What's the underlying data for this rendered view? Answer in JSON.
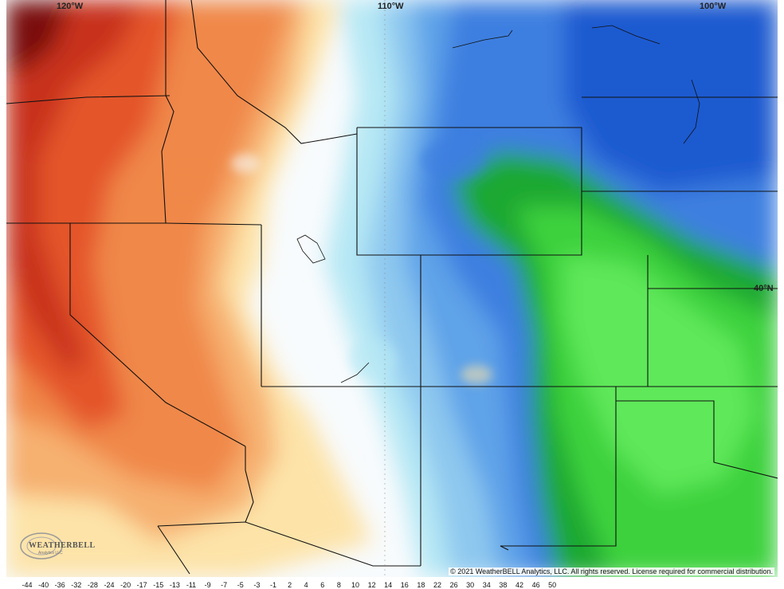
{
  "map": {
    "longitude_labels": [
      "120°W",
      "110°W",
      "100°W"
    ],
    "latitude_labels": [
      "40°N"
    ],
    "copyright": "© 2021 WeatherBELL Analytics, LLC. All rights reserved. License required for commercial distribution.",
    "logo": {
      "name": "WEATHERBELL",
      "subtitle": "Analytics LLC"
    }
  },
  "colorbar": {
    "ticks": [
      "-44",
      "-40",
      "-36",
      "-32",
      "-28",
      "-24",
      "-20",
      "-17",
      "-15",
      "-13",
      "-11",
      "-9",
      "-7",
      "-5",
      "-3",
      "-1",
      "2",
      "4",
      "6",
      "8",
      "10",
      "12",
      "14",
      "16",
      "18",
      "22",
      "26",
      "30",
      "34",
      "38",
      "42",
      "46",
      "50"
    ]
  },
  "colors": {
    "dark_red": "#7a0a08",
    "red": "#c8301c",
    "orange_red": "#e4552c",
    "orange": "#f0884a",
    "light_orange": "#f6b070",
    "pale_yellow": "#fde3a8",
    "white": "#f8fbfd",
    "light_cyan": "#b6e8f4",
    "light_blue": "#8ec8ef",
    "blue": "#5fa3e8",
    "medium_blue": "#3d7fe0",
    "deep_blue": "#1f5ad0",
    "dark_green": "#1ea832",
    "green": "#3ed23e",
    "light_green": "#5ee85a",
    "border": "#111111"
  }
}
